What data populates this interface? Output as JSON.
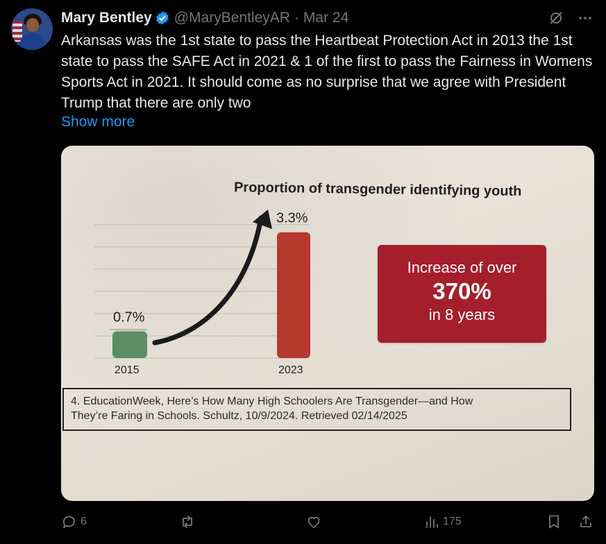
{
  "author": {
    "name": "Mary Bentley",
    "handle": "@MaryBentleyAR",
    "separator": "·",
    "date": "Mar 24"
  },
  "tweet": {
    "text": "Arkansas was the 1st state to pass the Heartbeat Protection Act in 2013 the 1st state to pass the SAFE Act in 2021 & 1  of the first to pass the Fairness in Womens Sports Act in 2021. It should come as no surprise that we agree with President Trump that there are only two",
    "show_more": "Show more"
  },
  "media": {
    "callout": {
      "line1": "Increase of over",
      "line2": "370%",
      "line3": "in 8 years",
      "color": "#a51e2c"
    },
    "citation": {
      "line1": "4. EducationWeek, Here’s How Many High Schoolers Are Transgender—and How",
      "line2": "They’re Faring in Schools. Schultz, 10/9/2024. Retrieved 02/14/2025"
    }
  },
  "chart_data": {
    "type": "bar",
    "title": "Proportion of transgender identifying youth",
    "categories": [
      "2015",
      "2023"
    ],
    "values": [
      0.7,
      3.3
    ],
    "data_labels": [
      "0.7%",
      "3.3%"
    ],
    "bar_colors": [
      "#5b8e63",
      "#b6392e"
    ],
    "ylim": [
      0,
      3.5
    ],
    "grid": true,
    "annotation": "curved arrow from 2015 bar rising to 2023 bar"
  },
  "actions": {
    "reply_count": "6",
    "retweet_count": "",
    "like_count": "",
    "views_count": "175"
  },
  "icons": [
    "verified-badge-icon",
    "grok-icon",
    "more-icon",
    "reply-icon",
    "retweet-icon",
    "like-icon",
    "views-icon",
    "bookmark-icon",
    "share-icon"
  ],
  "colors": {
    "link": "#1d9bf0",
    "verified": "#1d9bf0",
    "muted": "#71767b"
  }
}
